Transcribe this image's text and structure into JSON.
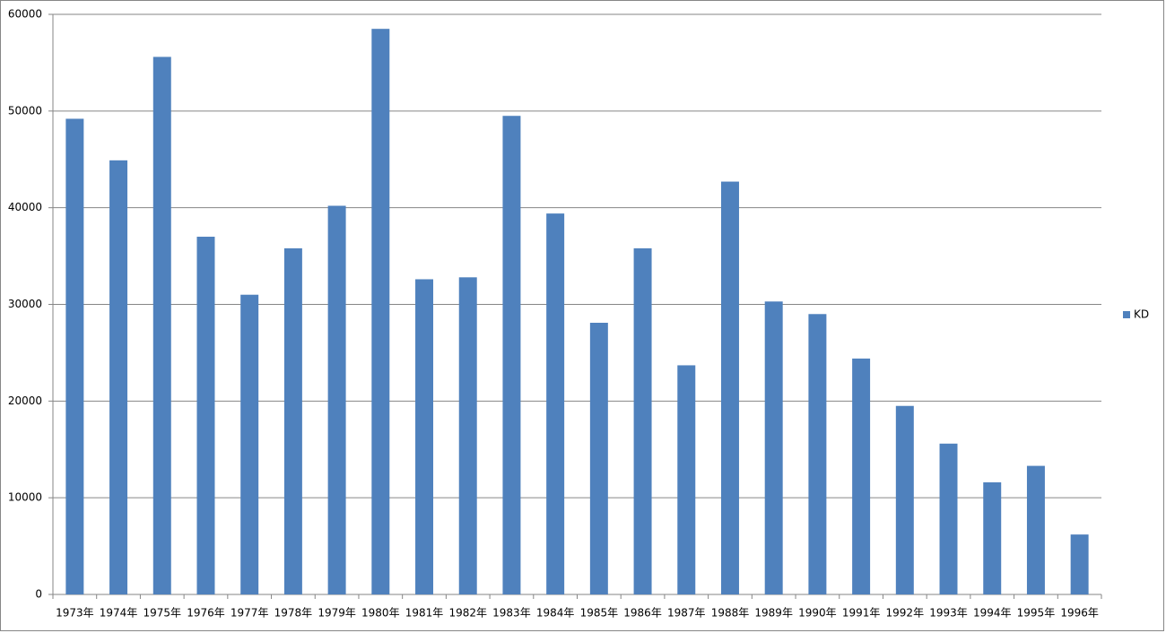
{
  "chart_data": {
    "type": "bar",
    "categories": [
      "1973年",
      "1974年",
      "1975年",
      "1976年",
      "1977年",
      "1978年",
      "1979年",
      "1980年",
      "1981年",
      "1982年",
      "1983年",
      "1984年",
      "1985年",
      "1986年",
      "1987年",
      "1988年",
      "1989年",
      "1990年",
      "1991年",
      "1992年",
      "1993年",
      "1994年",
      "1995年",
      "1996年"
    ],
    "series": [
      {
        "name": "KD",
        "color": "#4f81bd",
        "values": [
          49200,
          44900,
          55600,
          37000,
          31000,
          35800,
          40200,
          58500,
          32600,
          32800,
          49500,
          39400,
          28100,
          35800,
          23700,
          42700,
          30300,
          29000,
          24400,
          19500,
          15600,
          11600,
          13300,
          6200
        ]
      }
    ],
    "ylim": [
      0,
      60000
    ],
    "yticks": [
      0,
      10000,
      20000,
      30000,
      40000,
      50000,
      60000
    ],
    "grid": true,
    "legend": "right"
  }
}
